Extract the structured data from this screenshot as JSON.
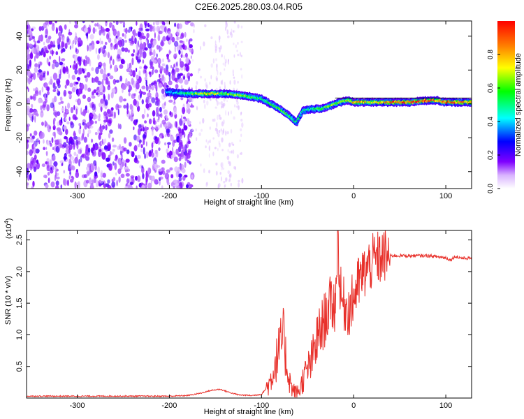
{
  "title": "C2E6.2025.280.03.04.R05",
  "chart_data": [
    {
      "type": "heatmap",
      "xlabel": "Height of straight line (km)",
      "ylabel": "Frequency (Hz)",
      "xlim": [
        -355,
        128
      ],
      "ylim": [
        -50,
        49
      ],
      "xticks": [
        -300,
        -200,
        -100,
        0,
        100
      ],
      "yticks": [
        -40,
        -20,
        0,
        20,
        40
      ],
      "colorbar": {
        "label": "Normalized spectral amplitude",
        "range": [
          0,
          1
        ],
        "ticks": [
          0.0,
          0.2,
          0.4,
          0.6,
          0.8
        ],
        "tick_labels": [
          "0.0",
          "0.2",
          "0.4",
          "0.6",
          "0.8"
        ],
        "colormap": [
          "#ffffff",
          "#7f00ff",
          "#0000ff",
          "#00ffff",
          "#00ff00",
          "#ffff00",
          "#ff8000",
          "#ff0000"
        ]
      },
      "noise_band_x": [
        -355,
        -185
      ],
      "ridge": {
        "x": [
          -203,
          -180,
          -160,
          -140,
          -120,
          -100,
          -90,
          -80,
          -70,
          -62,
          -55,
          -45,
          -35,
          -25,
          -15,
          -5,
          0,
          20,
          40,
          60,
          80,
          90,
          100,
          110,
          128
        ],
        "y": [
          7,
          6,
          6,
          6,
          5,
          3,
          0,
          -3,
          -7,
          -11,
          -4,
          -3,
          -3,
          -1,
          1,
          2,
          1,
          1,
          1,
          1,
          2,
          2,
          1,
          1,
          1
        ],
        "amp": [
          0.35,
          0.55,
          0.75,
          0.6,
          0.65,
          0.5,
          0.55,
          0.6,
          0.55,
          0.5,
          0.45,
          0.5,
          0.6,
          0.6,
          0.65,
          0.7,
          0.85,
          0.7,
          0.85,
          0.9,
          0.95,
          0.8,
          0.9,
          0.85,
          0.8
        ]
      }
    },
    {
      "type": "line",
      "xlabel": "Height of straight line (km)",
      "ylabel": "SNR (10 * v/v)",
      "yscale_label": "(x10",
      "yscale_exp": "4",
      "yscale_close": ")",
      "xlim": [
        -355,
        128
      ],
      "ylim": [
        0,
        2.65
      ],
      "xticks": [
        -300,
        -200,
        -100,
        0,
        100
      ],
      "yticks": [
        0.5,
        1.0,
        1.5,
        2.0,
        2.5
      ],
      "ytick_labels": [
        "0.5",
        "1.0",
        "1.5",
        "2.0",
        "2.5"
      ],
      "series": [
        {
          "color": "#e8302a",
          "x": [
            -355,
            -200,
            -180,
            -165,
            -155,
            -145,
            -135,
            -125,
            -110,
            -100,
            -95,
            -90,
            -85,
            -80,
            -76,
            -73,
            -70,
            -66,
            -62,
            -58,
            -55,
            -50,
            -45,
            -40,
            -35,
            -30,
            -25,
            -20,
            -17,
            -15,
            -12,
            -8,
            -4,
            0,
            5,
            10,
            15,
            20,
            25,
            30,
            35,
            40,
            60,
            80,
            100,
            105,
            110,
            115,
            120,
            128
          ],
          "y": [
            0.03,
            0.03,
            0.04,
            0.08,
            0.12,
            0.14,
            0.09,
            0.05,
            0.04,
            0.06,
            0.15,
            0.28,
            0.55,
            0.8,
            1.0,
            0.55,
            0.3,
            0.12,
            0.08,
            0.15,
            0.3,
            0.45,
            0.6,
            0.9,
            1.1,
            1.3,
            1.5,
            1.45,
            2.65,
            1.7,
            1.5,
            1.45,
            1.4,
            1.6,
            1.8,
            1.95,
            2.05,
            2.15,
            2.2,
            2.22,
            2.25,
            2.25,
            2.25,
            2.25,
            2.22,
            2.18,
            2.24,
            2.22,
            2.21,
            2.21
          ]
        }
      ]
    }
  ]
}
